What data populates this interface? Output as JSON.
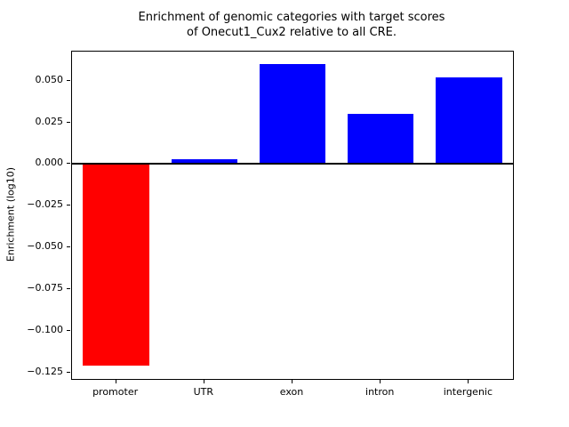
{
  "title": {
    "line1": "Enrichment of genomic categories with target scores",
    "line2": "of Onecut1_Cux2 relative to all CRE."
  },
  "chart_data": {
    "type": "bar",
    "title": "Enrichment of genomic categories with target scores\nof Onecut1_Cux2 relative to all CRE.",
    "title_lines": [
      "Enrichment of genomic categories with target scores",
      "of Onecut1_Cux2 relative to all CRE."
    ],
    "categories": [
      "promoter",
      "UTR",
      "exon",
      "intron",
      "intergenic"
    ],
    "values": [
      -0.121,
      0.003,
      0.06,
      0.03,
      0.052
    ],
    "bar_colors": [
      "#ff0000",
      "#0000ff",
      "#0000ff",
      "#0000ff",
      "#0000ff"
    ],
    "xlabel": "",
    "ylabel": "Enrichment (log10)",
    "ylim": [
      -0.129,
      0.0675
    ],
    "yticks": [
      0.05,
      0.025,
      0.0,
      -0.025,
      -0.05,
      -0.075,
      -0.1,
      -0.125
    ],
    "ytick_labels": [
      "0.050",
      "0.025",
      "0.000",
      "−0.025",
      "−0.050",
      "−0.075",
      "−0.100",
      "−0.125"
    ],
    "grid": false,
    "legend": "none",
    "zero_line": true,
    "zero_line_color": "#000000"
  }
}
